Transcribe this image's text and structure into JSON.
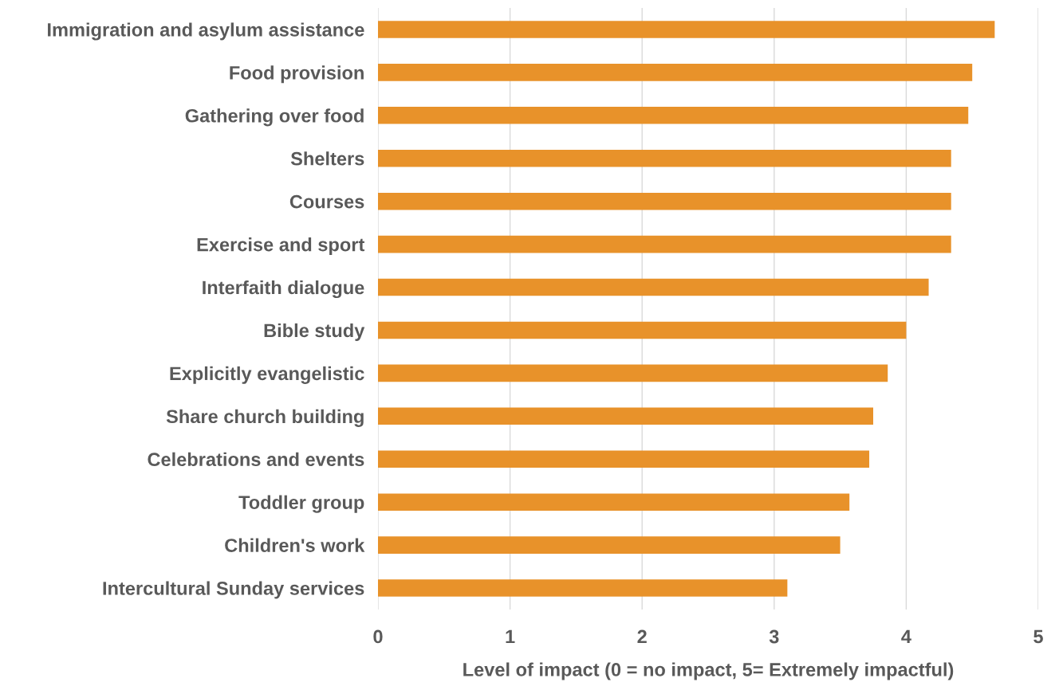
{
  "chart_data": {
    "type": "bar",
    "orientation": "horizontal",
    "xlabel": "Level of impact (0 = no impact, 5= Extremely impactful)",
    "categories": [
      "Immigration and asylum assistance",
      "Food provision",
      "Gathering over food",
      "Shelters",
      "Courses",
      "Exercise and sport",
      "Interfaith dialogue",
      "Bible study",
      "Explicitly evangelistic",
      "Share church building",
      "Celebrations and events",
      "Toddler group",
      "Children's work",
      "Intercultural Sunday services"
    ],
    "values": [
      4.67,
      4.5,
      4.47,
      4.34,
      4.34,
      4.34,
      4.17,
      4.0,
      3.86,
      3.75,
      3.72,
      3.57,
      3.5,
      3.1
    ],
    "color": "#e8922a",
    "xlim": [
      0,
      5
    ],
    "xticks": [
      0,
      1,
      2,
      3,
      4,
      5
    ],
    "grid": "x"
  }
}
